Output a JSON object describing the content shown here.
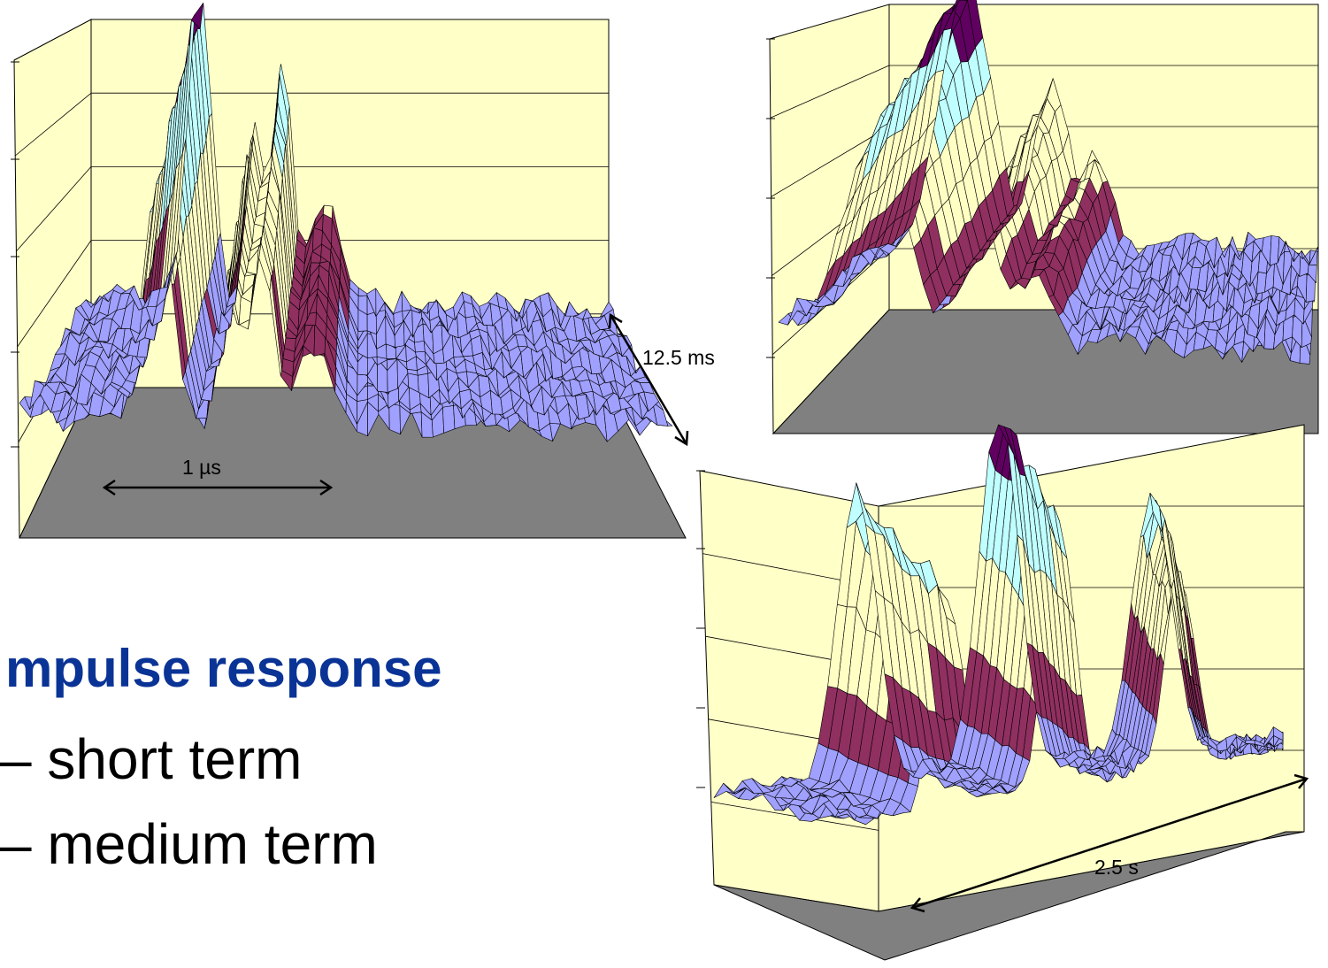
{
  "slide": {
    "heading": "mpulse response",
    "bullets": [
      "– short term",
      "– medium term"
    ]
  },
  "colors": {
    "wall": "#ffffc8",
    "floor": "#808080",
    "band_low": "#a0a0ff",
    "band_mid": "#903060",
    "band_high": "#ffffc4",
    "band_upper": "#c0ffff",
    "band_peak": "#600060"
  },
  "chart_data": [
    {
      "type": "surface",
      "annotations": {
        "x_span": "1 µs",
        "depth_span": "12.5 ms"
      },
      "peaks": [
        {
          "x": 0.21,
          "height": 1.0,
          "width": 0.035
        },
        {
          "x": 0.32,
          "height": 0.62,
          "width": 0.025
        },
        {
          "x": 0.37,
          "height": 0.76,
          "width": 0.03
        },
        {
          "x": 0.45,
          "height": 0.35,
          "width": 0.05
        }
      ],
      "noise_floor": 0.1
    },
    {
      "type": "surface",
      "annotations": {},
      "peaks": [
        {
          "x": 0.18,
          "height": 1.0,
          "width": 0.09
        },
        {
          "x": 0.38,
          "height": 0.62,
          "width": 0.07
        },
        {
          "x": 0.48,
          "height": 0.38,
          "width": 0.06
        }
      ],
      "noise_floor": 0.12
    },
    {
      "type": "surface",
      "annotations": {
        "depth_span": "2.5 s"
      },
      "peaks": [
        {
          "x": 0.25,
          "height": 0.82,
          "width": 0.05
        },
        {
          "x": 0.5,
          "height": 1.0,
          "width": 0.05
        },
        {
          "x": 0.77,
          "height": 0.72,
          "width": 0.05
        }
      ],
      "noise_floor": 0.06
    }
  ]
}
